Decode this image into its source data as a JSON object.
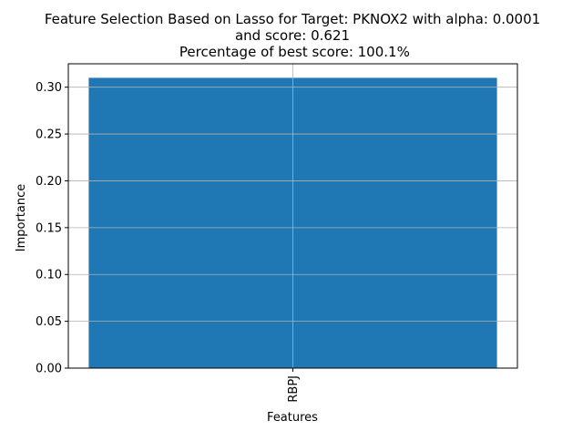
{
  "chart_data": {
    "type": "bar",
    "title_lines": [
      "Feature Selection Based on Lasso for Target: PKNOX2 with alpha: 0.0001",
      "and score: 0.621",
      " Percentage of best score: 100.1%"
    ],
    "xlabel": "Features",
    "ylabel": "Importance",
    "categories": [
      "RBPJ"
    ],
    "values": [
      0.31
    ],
    "ylim": [
      0.0,
      0.325
    ],
    "yticks": [
      0.0,
      0.05,
      0.1,
      0.15,
      0.2,
      0.25,
      0.3
    ],
    "ytick_labels": [
      "0.00",
      "0.05",
      "0.10",
      "0.15",
      "0.20",
      "0.25",
      "0.30"
    ],
    "grid": true,
    "bar_color": "#1f77b4",
    "grid_color": "#b0b0b0",
    "xtick_rotation": "vertical"
  }
}
